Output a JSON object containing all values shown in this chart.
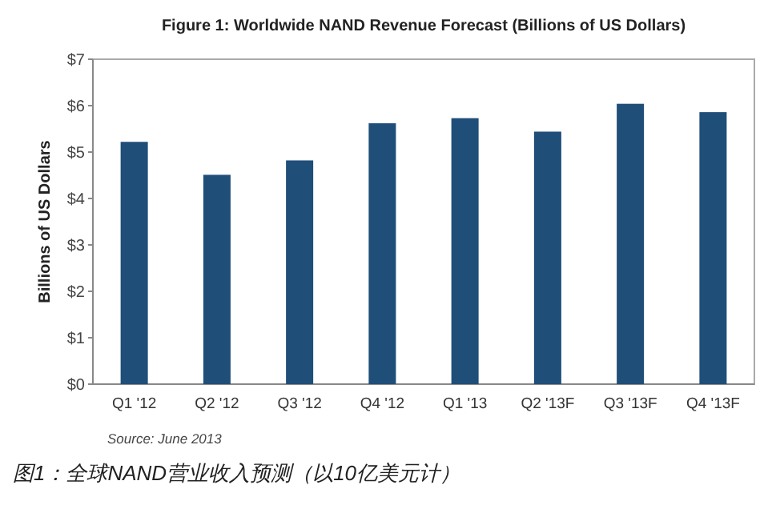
{
  "chart_data": {
    "type": "bar",
    "title": "Figure 1: Worldwide NAND Revenue Forecast (Billions of US Dollars)",
    "ylabel": "Billions of US Dollars",
    "categories": [
      "Q1 '12",
      "Q2 '12",
      "Q3 '12",
      "Q4 '12",
      "Q1 '13",
      "Q2 '13F",
      "Q3 '13F",
      "Q4 '13F"
    ],
    "values": [
      5.22,
      4.51,
      4.82,
      5.62,
      5.73,
      5.44,
      6.04,
      5.86
    ],
    "color": "#1f4e79",
    "ylim": [
      0,
      7
    ],
    "yticks": [
      {
        "value": 0,
        "label": "$0"
      },
      {
        "value": 1,
        "label": "$1"
      },
      {
        "value": 2,
        "label": "$2"
      },
      {
        "value": 3,
        "label": "$3"
      },
      {
        "value": 4,
        "label": "$4"
      },
      {
        "value": 5,
        "label": "$5"
      },
      {
        "value": 6,
        "label": "$6"
      },
      {
        "value": 7,
        "label": "$7"
      }
    ],
    "grid": false,
    "annotations": [
      "Source: June 2013",
      "图1：全球NAND营业收入预测（以10亿美元计）"
    ]
  }
}
